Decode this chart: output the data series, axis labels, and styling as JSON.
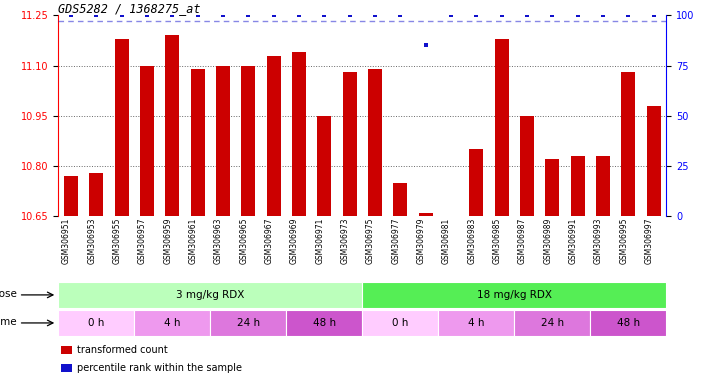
{
  "title": "GDS5282 / 1368275_at",
  "samples": [
    "GSM306951",
    "GSM306953",
    "GSM306955",
    "GSM306957",
    "GSM306959",
    "GSM306961",
    "GSM306963",
    "GSM306965",
    "GSM306967",
    "GSM306969",
    "GSM306971",
    "GSM306973",
    "GSM306975",
    "GSM306977",
    "GSM306979",
    "GSM306981",
    "GSM306983",
    "GSM306985",
    "GSM306987",
    "GSM306989",
    "GSM306991",
    "GSM306993",
    "GSM306995",
    "GSM306997"
  ],
  "bar_values": [
    10.77,
    10.78,
    11.18,
    11.1,
    11.19,
    11.09,
    11.1,
    11.1,
    11.13,
    11.14,
    10.95,
    11.08,
    11.09,
    10.75,
    10.66,
    10.65,
    10.85,
    11.18,
    10.95,
    10.82,
    10.83,
    10.83,
    11.08,
    10.98
  ],
  "percentile_values": [
    100,
    100,
    100,
    100,
    100,
    100,
    100,
    100,
    100,
    100,
    100,
    100,
    100,
    100,
    85,
    100,
    100,
    100,
    100,
    100,
    100,
    100,
    100,
    100
  ],
  "bar_color": "#cc0000",
  "percentile_color": "#1111cc",
  "ylim_left": [
    10.65,
    11.25
  ],
  "ylim_right": [
    0,
    100
  ],
  "yticks_left": [
    10.65,
    10.8,
    10.95,
    11.1,
    11.25
  ],
  "yticks_right": [
    0,
    25,
    50,
    75,
    100
  ],
  "grid_values": [
    10.8,
    10.95,
    11.1
  ],
  "dose_labels": [
    {
      "text": "3 mg/kg RDX",
      "start": 0,
      "end": 12,
      "color": "#bbffbb"
    },
    {
      "text": "18 mg/kg RDX",
      "start": 12,
      "end": 24,
      "color": "#55ee55"
    }
  ],
  "time_labels": [
    {
      "text": "0 h",
      "start": 0,
      "end": 3,
      "color": "#ffccff"
    },
    {
      "text": "4 h",
      "start": 3,
      "end": 6,
      "color": "#ee99ee"
    },
    {
      "text": "24 h",
      "start": 6,
      "end": 9,
      "color": "#dd77dd"
    },
    {
      "text": "48 h",
      "start": 9,
      "end": 12,
      "color": "#cc55cc"
    },
    {
      "text": "0 h",
      "start": 12,
      "end": 15,
      "color": "#ffccff"
    },
    {
      "text": "4 h",
      "start": 15,
      "end": 18,
      "color": "#ee99ee"
    },
    {
      "text": "24 h",
      "start": 18,
      "end": 21,
      "color": "#dd77dd"
    },
    {
      "text": "48 h",
      "start": 21,
      "end": 24,
      "color": "#cc55cc"
    }
  ],
  "legend_items": [
    {
      "label": "transformed count",
      "color": "#cc0000"
    },
    {
      "label": "percentile rank within the sample",
      "color": "#1111cc"
    }
  ],
  "bg_color": "#ffffff",
  "xtick_bg_color": "#cccccc"
}
